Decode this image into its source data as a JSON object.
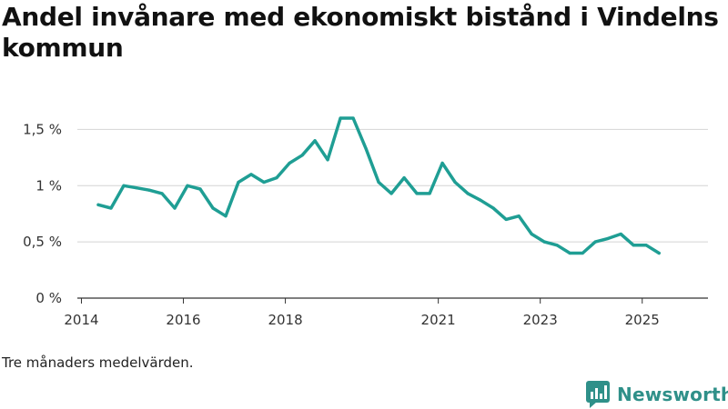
{
  "title": "Andel invånare med ekonomiskt bistånd i Vindelns kommun",
  "caption": "Tre månaders medelvärden.",
  "brand": {
    "name": "Newsworthy",
    "logo_icon": "newsworthy-chart-bubble-icon",
    "color": "#2f9089"
  },
  "chart_data": {
    "type": "line",
    "title": "Andel invånare med ekonomiskt bistånd i Vindelns kommun",
    "xlabel": "",
    "ylabel": "",
    "ylim": [
      0,
      1.6
    ],
    "xlim": [
      2013.92,
      2026.29
    ],
    "yticks": [
      {
        "value": 0,
        "label": "0 %"
      },
      {
        "value": 0.5,
        "label": "0,5 %"
      },
      {
        "value": 1,
        "label": "1 %"
      },
      {
        "value": 1.5,
        "label": "1,5 %"
      }
    ],
    "xticks": [
      {
        "value": 2014,
        "label": "2014"
      },
      {
        "value": 2016,
        "label": "2016"
      },
      {
        "value": 2018,
        "label": "2018"
      },
      {
        "value": 2021,
        "label": "2021"
      },
      {
        "value": 2023,
        "label": "2023"
      },
      {
        "value": 2025,
        "label": "2025"
      }
    ],
    "grid": true,
    "line_color": "#1f9e94",
    "series": [
      {
        "x": [
          2014.33,
          2014.58,
          2014.83,
          2015.08,
          2015.33,
          2015.58,
          2015.83,
          2016.08,
          2016.33,
          2016.58,
          2016.83,
          2017.08,
          2017.33,
          2017.58,
          2017.83,
          2018.08,
          2018.33,
          2018.58,
          2018.83,
          2019.08,
          2019.33,
          2019.58,
          2019.83,
          2020.08,
          2020.33,
          2020.58,
          2020.83,
          2021.08,
          2021.33,
          2021.58,
          2021.83,
          2022.08,
          2022.33,
          2022.58,
          2022.83,
          2023.08,
          2023.33,
          2023.58,
          2023.83,
          2024.08,
          2024.33,
          2024.58,
          2024.83,
          2025.08,
          2025.33
        ],
        "values": [
          0.83,
          0.8,
          1.0,
          0.98,
          0.96,
          0.93,
          0.8,
          1.0,
          0.97,
          0.8,
          0.73,
          1.03,
          1.1,
          1.03,
          1.07,
          1.2,
          1.27,
          1.4,
          1.23,
          1.6,
          1.6,
          1.33,
          1.03,
          0.93,
          1.07,
          0.93,
          0.93,
          1.2,
          1.03,
          0.93,
          0.87,
          0.8,
          0.7,
          0.73,
          0.57,
          0.5,
          0.47,
          0.4,
          0.4,
          0.5,
          0.53,
          0.57,
          0.47,
          0.47,
          0.4
        ]
      }
    ]
  }
}
